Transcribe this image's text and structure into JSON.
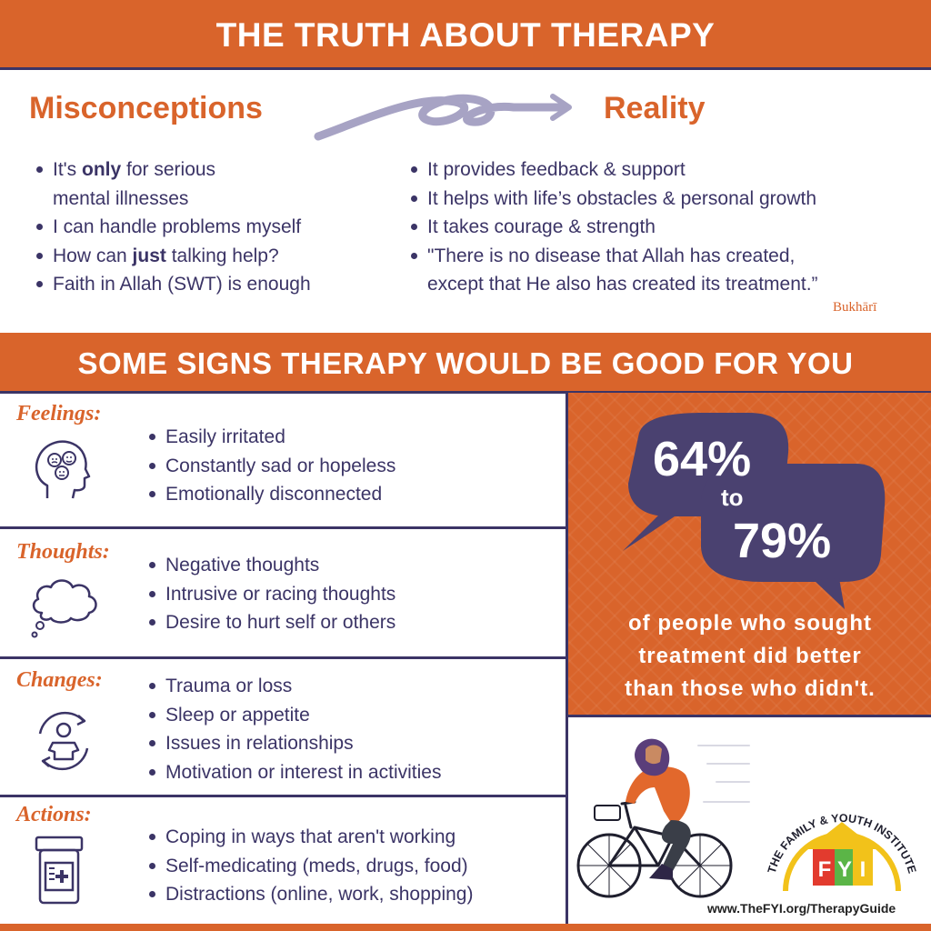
{
  "header": {
    "title": "THE TRUTH ABOUT THERAPY"
  },
  "misconceptions": {
    "heading": "Misconceptions",
    "item1_pre": "It's ",
    "item1_bold": "only",
    "item1_post": " for serious",
    "item1_line2": "mental illnesses",
    "item2": "I can handle problems myself",
    "item3_pre": "How can ",
    "item3_bold": "just",
    "item3_post": " talking help?",
    "item4": "Faith in Allah (SWT) is enough"
  },
  "reality": {
    "heading": "Reality",
    "item1": "It provides feedback & support",
    "item2": "It helps with life’s obstacles & personal growth",
    "item3": "It takes courage & strength",
    "item4_line1": "\"There is no disease that Allah has created,",
    "item4_line2": "except that He also has created its treatment.”",
    "attribution": "Bukhārī"
  },
  "signs": {
    "title": "SOME SIGNS THERAPY WOULD BE GOOD FOR YOU",
    "sections": [
      {
        "label": "Feelings:",
        "icon": "mood-head-icon",
        "items": [
          "Easily irritated",
          "Constantly sad or hopeless",
          "Emotionally disconnected"
        ]
      },
      {
        "label": "Thoughts:",
        "icon": "thought-cloud-icon",
        "items": [
          "Negative thoughts",
          "Intrusive or racing thoughts",
          "Desire to hurt self or others"
        ]
      },
      {
        "label": "Changes:",
        "icon": "person-cycle-icon",
        "items": [
          "Trauma or loss",
          "Sleep or appetite",
          "Issues in relationships",
          "Motivation or interest in activities"
        ]
      },
      {
        "label": "Actions:",
        "icon": "medicine-bottle-icon",
        "items": [
          "Coping in ways that aren't working",
          "Self-medicating (meds, drugs, food)",
          "Distractions (online, work, shopping)"
        ]
      }
    ]
  },
  "stat": {
    "low": "64%",
    "connector": "to",
    "high": "79%",
    "caption_line1": "of people who sought",
    "caption_line2": "treatment did better",
    "caption_line3": "than those who didn't."
  },
  "logo": {
    "arc_text": "THE FAMILY & YOUTH INSTITUTE",
    "letters": [
      "F",
      "Y",
      "I"
    ]
  },
  "footer": {
    "url": "www.TheFYI.org/TherapyGuide"
  },
  "colors": {
    "orange": "#d9642b",
    "navy": "#3b3466",
    "bubble": "#4a4170",
    "arrow": "#a7a3c4"
  }
}
